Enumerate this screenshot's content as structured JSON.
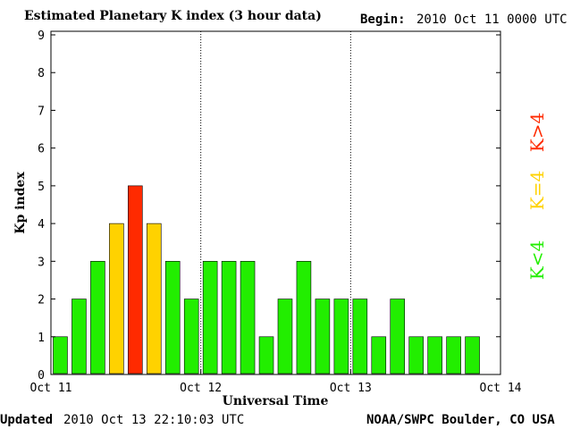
{
  "header": {
    "title": "Estimated Planetary K index (3 hour data)",
    "begin_label": "Begin:",
    "begin_value": "2010 Oct 11 0000 UTC"
  },
  "footer": {
    "updated_label": "Updated",
    "updated_value": "2010 Oct 13 22:10:03 UTC",
    "credit": "NOAA/SWPC Boulder, CO USA"
  },
  "legend": [
    {
      "label": "K<4",
      "color": "#22ee00"
    },
    {
      "label": "K=4",
      "color": "#ffd200"
    },
    {
      "label": "K>4",
      "color": "#ff2a00"
    }
  ],
  "colors": {
    "below": "#22ee00",
    "equal": "#ffd200",
    "above": "#ff2a00"
  },
  "chart_data": {
    "type": "bar",
    "xlabel": "Universal Time",
    "ylabel": "Kp index",
    "ylim": [
      0,
      9
    ],
    "yticks": [
      "0",
      "1",
      "2",
      "3",
      "4",
      "5",
      "6",
      "7",
      "8",
      "9"
    ],
    "xticks": [
      "Oct 11",
      "Oct 12",
      "Oct 13",
      "Oct 14"
    ],
    "interval_hours": 3,
    "day_dividers": "dotted",
    "values": [
      1,
      2,
      3,
      4,
      5,
      4,
      3,
      2,
      3,
      3,
      3,
      1,
      2,
      3,
      2,
      2,
      2,
      1,
      2,
      1,
      1,
      1,
      1
    ]
  }
}
